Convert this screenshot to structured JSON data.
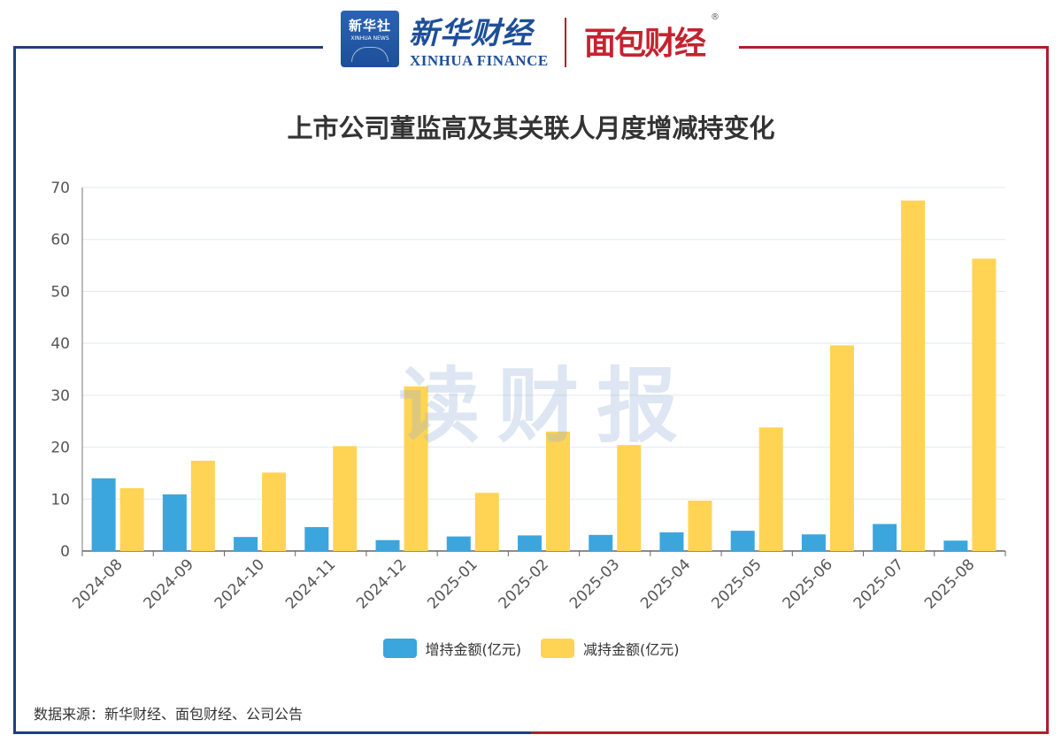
{
  "header": {
    "xinhua_logo_text": "新华社",
    "xinhua_logo_en": "XINHUA NEWS",
    "xinhua_finance_cn": "新华财经",
    "xinhua_finance_en": "XINHUA FINANCE",
    "mianbao_logo": "面包财经",
    "registered_mark": "®"
  },
  "watermark": "读财报",
  "source": "数据来源：新华财经、面包财经、公司公告",
  "colors": {
    "increase": "#3ba6dd",
    "decrease": "#ffd454",
    "frame_blue": "#1f3f7a",
    "frame_red": "#b01f2a"
  },
  "chart_data": {
    "type": "bar",
    "title": "上市公司董监高及其关联人月度增减持变化",
    "categories": [
      "2024-08",
      "2024-09",
      "2024-10",
      "2024-11",
      "2024-12",
      "2025-01",
      "2025-02",
      "2025-03",
      "2025-04",
      "2025-05",
      "2025-06",
      "2025-07",
      "2025-08"
    ],
    "series": [
      {
        "name": "增持金额(亿元)",
        "color": "#3ba6dd",
        "values": [
          14.0,
          10.9,
          2.7,
          4.6,
          2.1,
          2.8,
          3.0,
          3.1,
          3.6,
          3.9,
          3.2,
          5.2,
          2.0
        ]
      },
      {
        "name": "减持金额(亿元)",
        "color": "#ffd454",
        "values": [
          12.1,
          17.4,
          15.1,
          20.2,
          31.7,
          11.2,
          23.0,
          20.4,
          9.7,
          23.8,
          39.6,
          67.5,
          56.3
        ]
      }
    ],
    "yticks": [
      0,
      10,
      20,
      30,
      40,
      50,
      60,
      70
    ],
    "ylim": [
      0,
      70
    ],
    "xlabel": "",
    "ylabel": "",
    "legend_position": "bottom"
  }
}
